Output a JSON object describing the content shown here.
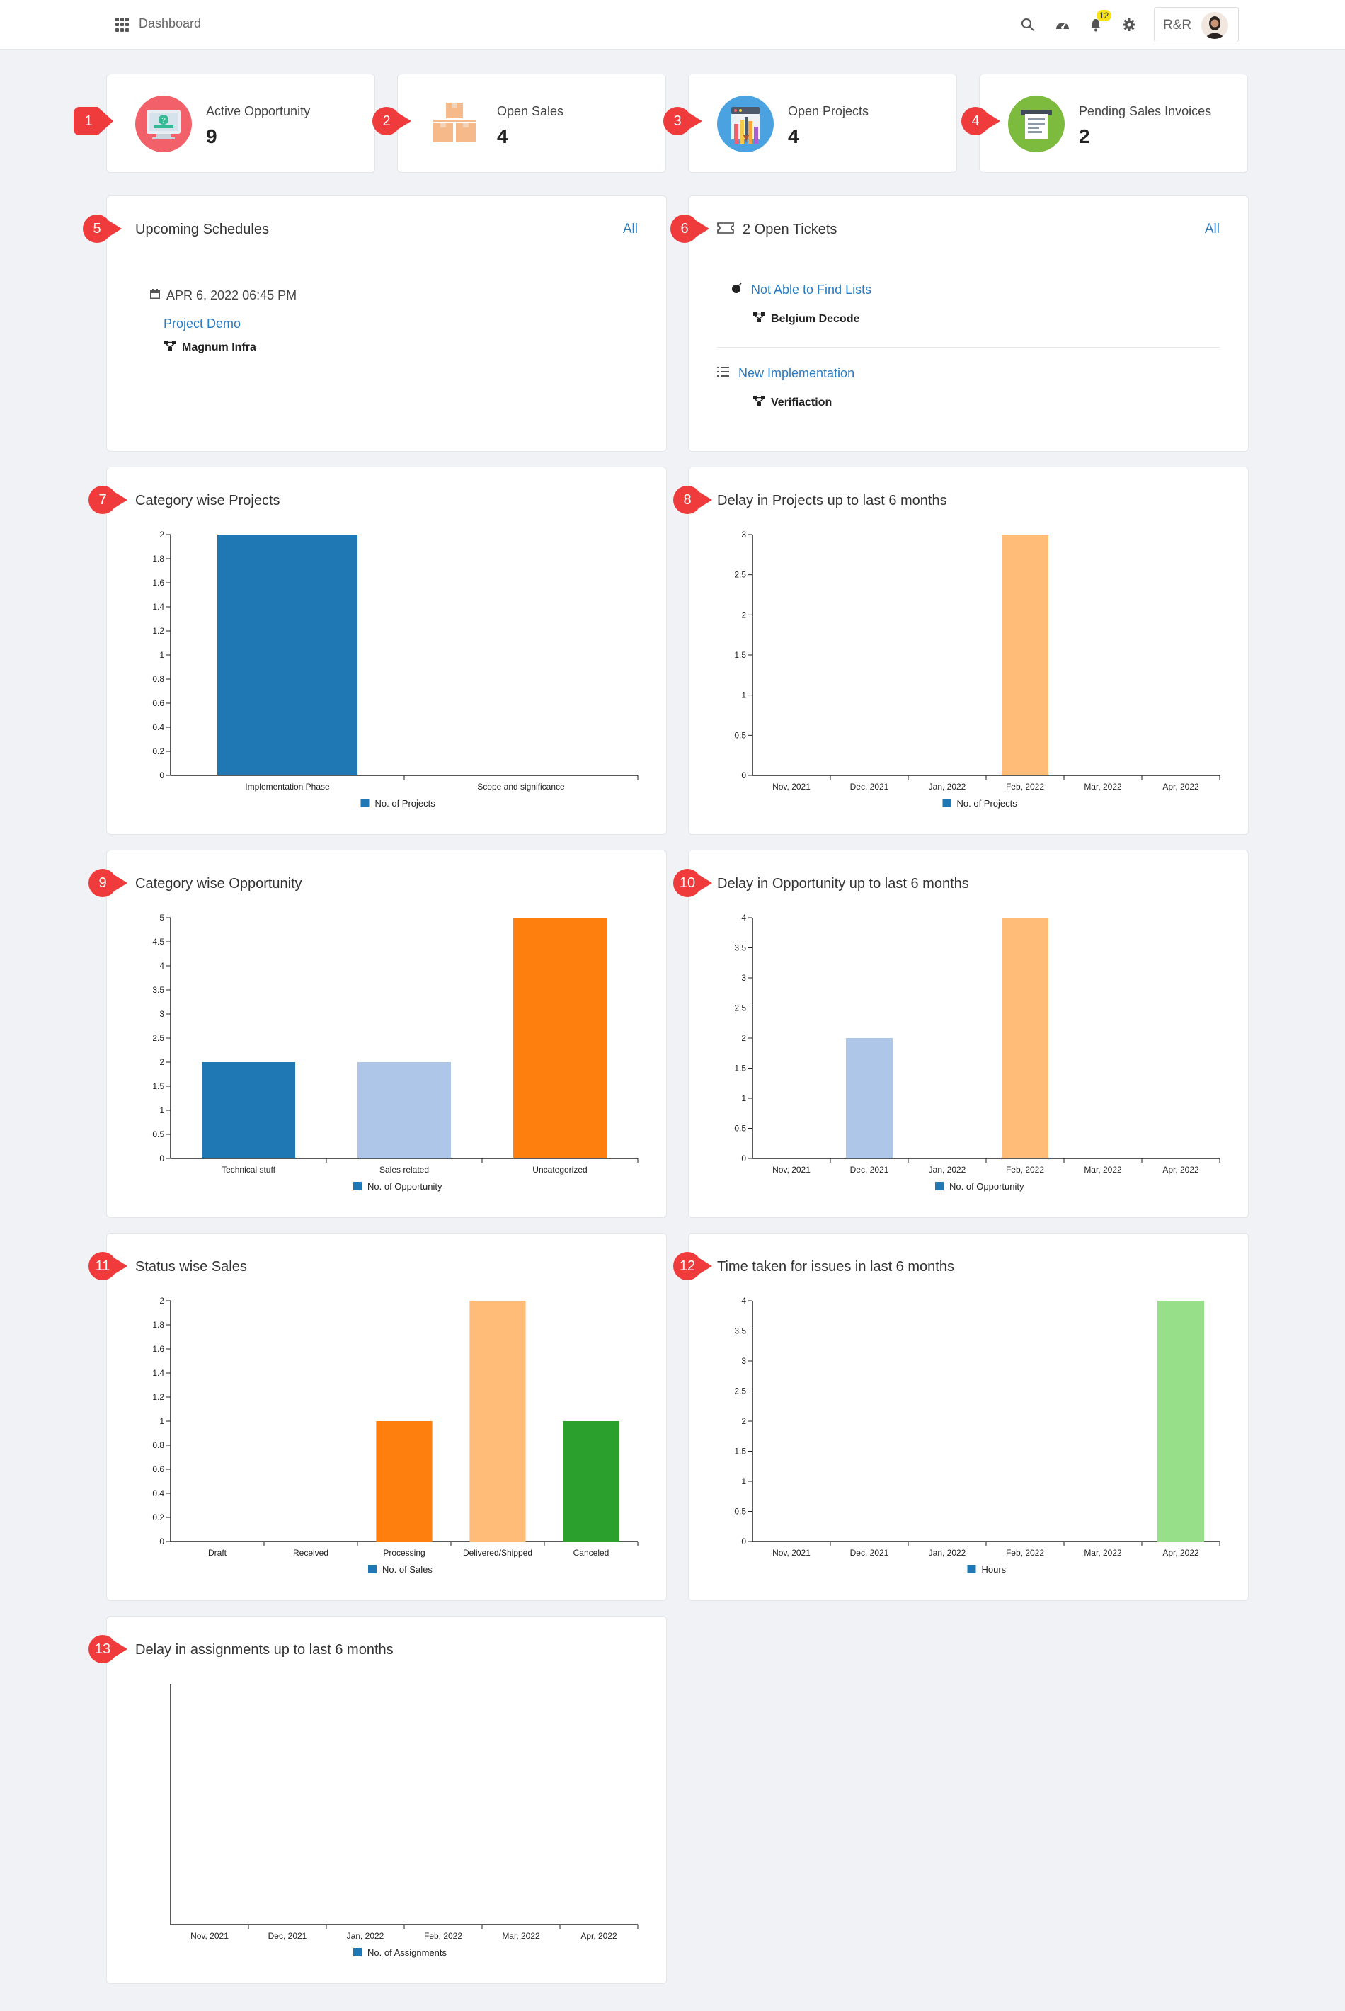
{
  "header": {
    "title": "Dashboard",
    "notification_count": "12",
    "user_initials": "R&R"
  },
  "stats": [
    {
      "label": "Active Opportunity",
      "value": "9",
      "icon": "monitor-icon",
      "color": "#f2606a"
    },
    {
      "label": "Open Sales",
      "value": "4",
      "icon": "boxes-icon",
      "color": "#ffffff"
    },
    {
      "label": "Open Projects",
      "value": "4",
      "icon": "project-tools-icon",
      "color": "#4aa3e0"
    },
    {
      "label": "Pending Sales Invoices",
      "value": "2",
      "icon": "invoice-icon",
      "color": "#7dbb3e"
    }
  ],
  "markers": [
    "1",
    "2",
    "3",
    "4",
    "5",
    "6",
    "7",
    "8",
    "9",
    "10",
    "11",
    "12",
    "13"
  ],
  "schedules": {
    "title": "Upcoming Schedules",
    "all_label": "All",
    "items": [
      {
        "date": "APR 6, 2022 06:45 PM",
        "name": "Project Demo",
        "org": "Magnum Infra"
      }
    ]
  },
  "tickets": {
    "title": "2 Open Tickets",
    "all_label": "All",
    "items": [
      {
        "title": "Not Able to Find Lists",
        "org": "Belgium Decode"
      },
      {
        "title": "New Implementation",
        "org": "Verifiaction"
      }
    ]
  },
  "colors": {
    "blue": "#1f77b4",
    "light_blue": "#aec7e8",
    "orange": "#ff7f0e",
    "light_orange": "#ffbb78",
    "green": "#2ca02c",
    "light_green": "#98df8a",
    "marker_red": "#ef3b3b",
    "link": "#2a7bc0"
  },
  "chart_data": [
    {
      "type": "bar",
      "title": "Category wise Projects",
      "categories": [
        "Implementation Phase",
        "Scope and significance"
      ],
      "series": [
        {
          "name": "No. of Projects",
          "values": [
            2,
            0
          ]
        }
      ],
      "bar_colors": [
        "#1f77b4",
        "#aec7e8"
      ],
      "ylim": [
        0,
        2
      ],
      "yticks": [
        "0",
        "0.2",
        "0.4",
        "0.6",
        "0.8",
        "1",
        "1.2",
        "1.4",
        "1.6",
        "1.8",
        "2"
      ],
      "ytick_values": [
        0,
        0.2,
        0.4,
        0.6,
        0.8,
        1,
        1.2,
        1.4,
        1.6,
        1.8,
        2
      ],
      "legend": "bottom"
    },
    {
      "type": "bar",
      "title": "Delay in Projects up to last 6 months",
      "categories": [
        "Nov, 2021",
        "Dec, 2021",
        "Jan, 2022",
        "Feb, 2022",
        "Mar, 2022",
        "Apr, 2022"
      ],
      "series": [
        {
          "name": "No. of Projects",
          "values": [
            0,
            0,
            0,
            3,
            0,
            0
          ]
        }
      ],
      "bar_colors": [
        "#1f77b4",
        "#aec7e8",
        "#ff7f0e",
        "#ffbb78",
        "#2ca02c",
        "#98df8a"
      ],
      "ylim": [
        0,
        3
      ],
      "yticks": [
        "0",
        "0.5",
        "1",
        "1.5",
        "2",
        "2.5",
        "3"
      ],
      "ytick_values": [
        0,
        0.5,
        1,
        1.5,
        2,
        2.5,
        3
      ],
      "legend": "bottom"
    },
    {
      "type": "bar",
      "title": "Category wise Opportunity",
      "categories": [
        "Technical stuff",
        "Sales related",
        "Uncategorized"
      ],
      "series": [
        {
          "name": "No. of Opportunity",
          "values": [
            2,
            2,
            5
          ]
        }
      ],
      "bar_colors": [
        "#1f77b4",
        "#aec7e8",
        "#ff7f0e"
      ],
      "ylim": [
        0,
        5
      ],
      "yticks": [
        "0",
        "0.5",
        "1",
        "1.5",
        "2",
        "2.5",
        "3",
        "3.5",
        "4",
        "4.5",
        "5"
      ],
      "ytick_values": [
        0,
        0.5,
        1,
        1.5,
        2,
        2.5,
        3,
        3.5,
        4,
        4.5,
        5
      ],
      "legend": "bottom"
    },
    {
      "type": "bar",
      "title": "Delay in Opportunity up to last 6 months",
      "categories": [
        "Nov, 2021",
        "Dec, 2021",
        "Jan, 2022",
        "Feb, 2022",
        "Mar, 2022",
        "Apr, 2022"
      ],
      "series": [
        {
          "name": "No. of Opportunity",
          "values": [
            0,
            2,
            0,
            4,
            0,
            0
          ]
        }
      ],
      "bar_colors": [
        "#1f77b4",
        "#aec7e8",
        "#ff7f0e",
        "#ffbb78",
        "#2ca02c",
        "#98df8a"
      ],
      "ylim": [
        0,
        4
      ],
      "yticks": [
        "0",
        "0.5",
        "1",
        "1.5",
        "2",
        "2.5",
        "3",
        "3.5",
        "4"
      ],
      "ytick_values": [
        0,
        0.5,
        1,
        1.5,
        2,
        2.5,
        3,
        3.5,
        4
      ],
      "legend": "bottom"
    },
    {
      "type": "bar",
      "title": "Status wise Sales",
      "categories": [
        "Draft",
        "Received",
        "Processing",
        "Delivered/Shipped",
        "Canceled"
      ],
      "series": [
        {
          "name": "No. of Sales",
          "values": [
            0,
            0,
            1,
            2,
            1
          ]
        }
      ],
      "bar_colors": [
        "#1f77b4",
        "#aec7e8",
        "#ff7f0e",
        "#ffbb78",
        "#2ca02c"
      ],
      "ylim": [
        0,
        2
      ],
      "yticks": [
        "0",
        "0.2",
        "0.4",
        "0.6",
        "0.8",
        "1",
        "1.2",
        "1.4",
        "1.6",
        "1.8",
        "2"
      ],
      "ytick_values": [
        0,
        0.2,
        0.4,
        0.6,
        0.8,
        1,
        1.2,
        1.4,
        1.6,
        1.8,
        2
      ],
      "legend": "bottom"
    },
    {
      "type": "bar",
      "title": "Time taken for issues in last 6 months",
      "categories": [
        "Nov, 2021",
        "Dec, 2021",
        "Jan, 2022",
        "Feb, 2022",
        "Mar, 2022",
        "Apr, 2022"
      ],
      "series": [
        {
          "name": "Hours",
          "values": [
            0,
            0,
            0,
            0,
            0,
            4
          ]
        }
      ],
      "bar_colors": [
        "#1f77b4",
        "#aec7e8",
        "#ff7f0e",
        "#ffbb78",
        "#2ca02c",
        "#98df8a"
      ],
      "ylim": [
        0,
        4
      ],
      "yticks": [
        "0",
        "0.5",
        "1",
        "1.5",
        "2",
        "2.5",
        "3",
        "3.5",
        "4"
      ],
      "ytick_values": [
        0,
        0.5,
        1,
        1.5,
        2,
        2.5,
        3,
        3.5,
        4
      ],
      "legend": "bottom"
    },
    {
      "type": "bar",
      "title": "Delay in assignments up to last 6 months",
      "categories": [
        "Nov, 2021",
        "Dec, 2021",
        "Jan, 2022",
        "Feb, 2022",
        "Mar, 2022",
        "Apr, 2022"
      ],
      "series": [
        {
          "name": "No. of Assignments",
          "values": [
            0,
            0,
            0,
            0,
            0,
            0
          ]
        }
      ],
      "bar_colors": [
        "#1f77b4",
        "#aec7e8",
        "#ff7f0e",
        "#ffbb78",
        "#2ca02c",
        "#98df8a"
      ],
      "ylim": [
        0,
        1
      ],
      "yticks": [],
      "ytick_values": [],
      "legend": "bottom"
    }
  ]
}
